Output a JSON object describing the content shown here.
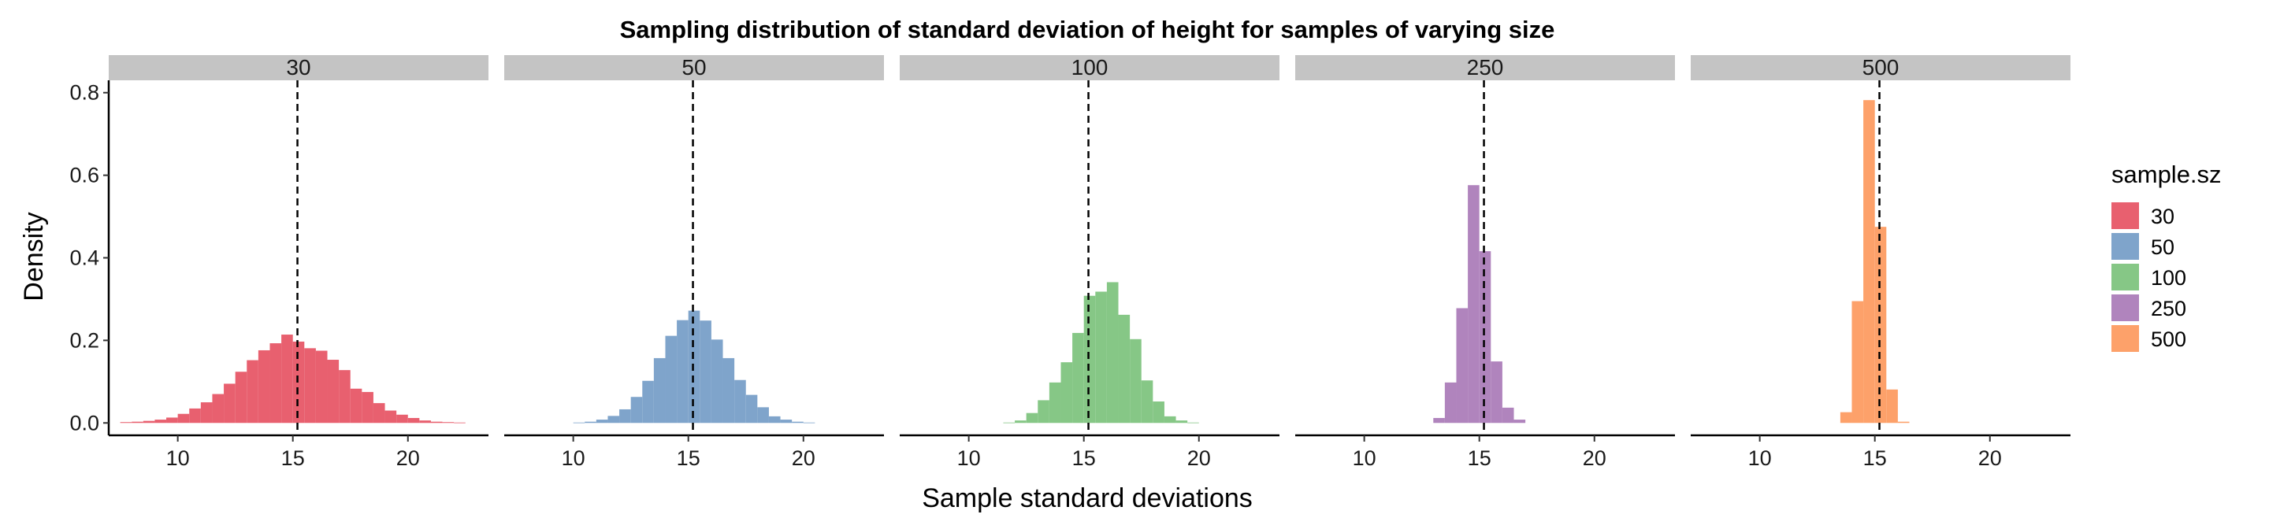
{
  "chart_data": {
    "type": "bar",
    "subtype": "faceted-histogram",
    "title": "Sampling distribution of standard deviation of height for samples of varying size",
    "xlabel": "Sample standard deviations",
    "ylabel": "Density",
    "xlim": [
      7,
      23.5
    ],
    "ylim": [
      -0.03,
      0.83
    ],
    "x_ticks": [
      10,
      15,
      20
    ],
    "y_ticks": [
      "0.0",
      "0.2",
      "0.4",
      "0.6",
      "0.8"
    ],
    "reference_line": {
      "x": 15.2,
      "style": "dashed"
    },
    "grid": false,
    "legend": {
      "title": "sample.sz",
      "placement": "right"
    },
    "bin_width": 0.5,
    "series": [
      {
        "name": "30",
        "color": "#e8606f",
        "bin_start": 7.5,
        "values": [
          0.002,
          0.003,
          0.005,
          0.008,
          0.013,
          0.022,
          0.035,
          0.05,
          0.07,
          0.095,
          0.124,
          0.152,
          0.176,
          0.193,
          0.214,
          0.197,
          0.181,
          0.175,
          0.153,
          0.128,
          0.083,
          0.075,
          0.048,
          0.03,
          0.02,
          0.012,
          0.006,
          0.003,
          0.002,
          0.001
        ]
      },
      {
        "name": "50",
        "color": "#7fa4cb",
        "bin_start": 10.0,
        "values": [
          0.001,
          0.003,
          0.008,
          0.017,
          0.033,
          0.063,
          0.102,
          0.157,
          0.211,
          0.249,
          0.272,
          0.248,
          0.202,
          0.157,
          0.104,
          0.068,
          0.038,
          0.016,
          0.008,
          0.003,
          0.001
        ]
      },
      {
        "name": "100",
        "color": "#86c786",
        "bin_start": 11.5,
        "values": [
          0.001,
          0.006,
          0.024,
          0.055,
          0.098,
          0.147,
          0.218,
          0.308,
          0.318,
          0.341,
          0.262,
          0.203,
          0.103,
          0.052,
          0.016,
          0.006,
          0.001
        ]
      },
      {
        "name": "250",
        "color": "#b084bd",
        "bin_start": 13.0,
        "values": [
          0.012,
          0.098,
          0.278,
          0.576,
          0.416,
          0.149,
          0.037,
          0.008
        ]
      },
      {
        "name": "500",
        "color": "#fda16a",
        "bin_start": 13.5,
        "values": [
          0.026,
          0.295,
          0.782,
          0.475,
          0.081,
          0.003
        ]
      }
    ]
  }
}
